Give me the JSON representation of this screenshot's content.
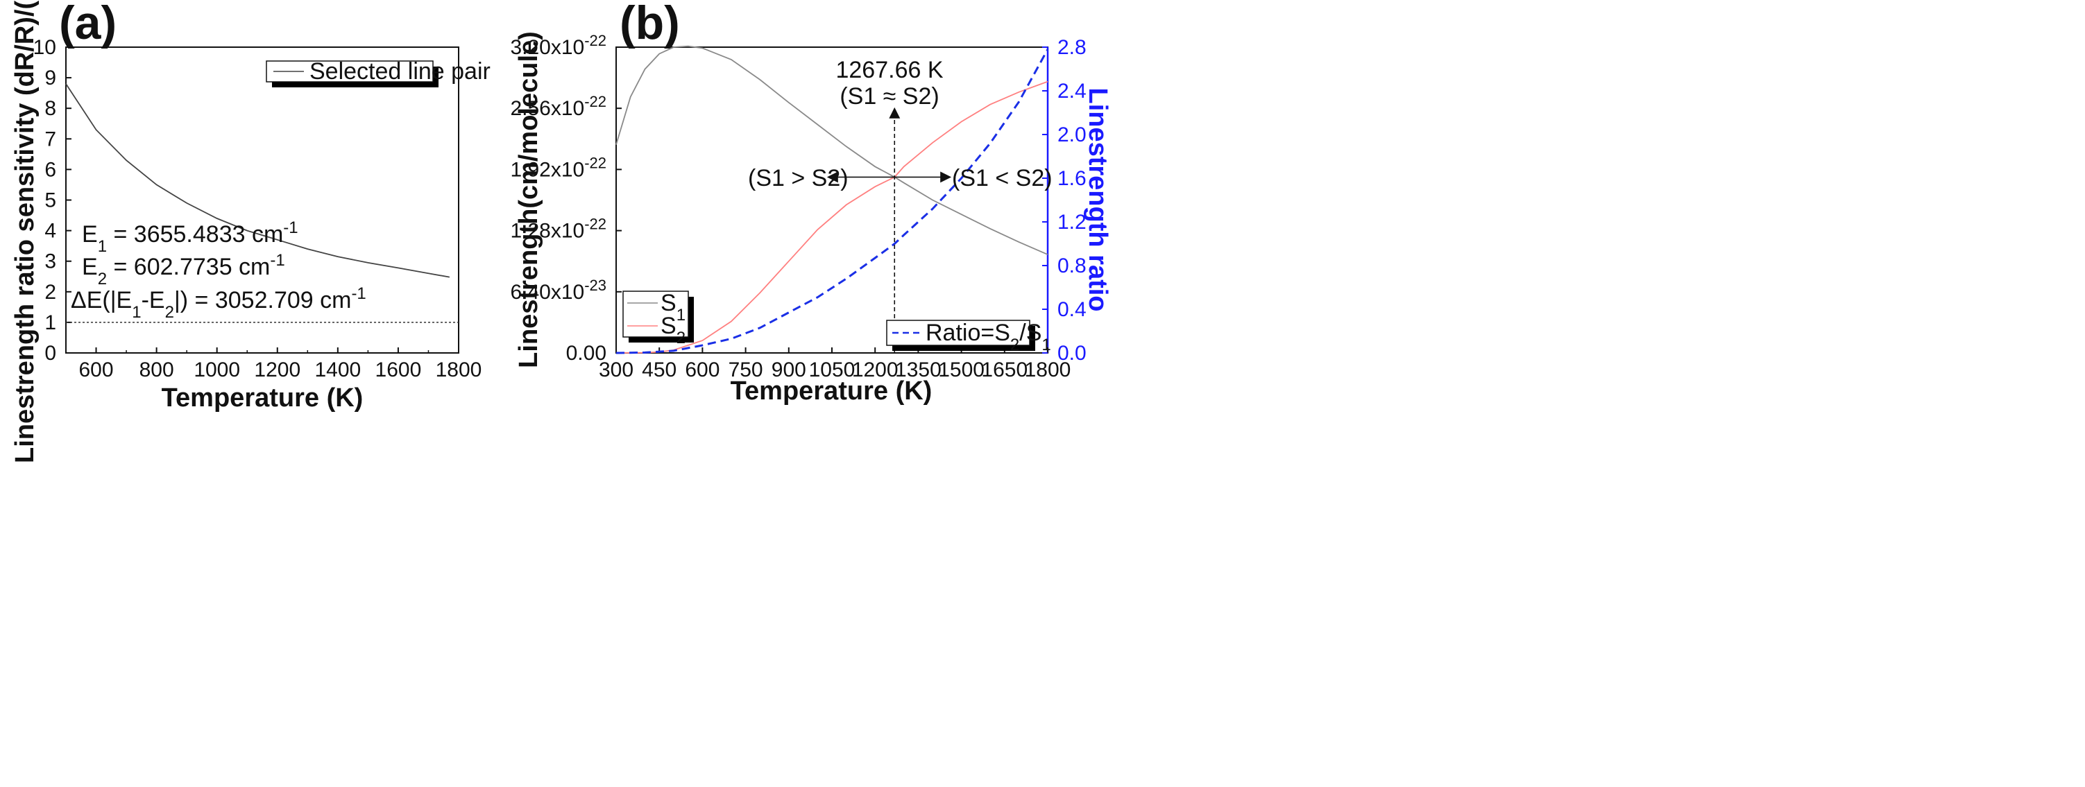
{
  "colors": {
    "black_line": "#444444",
    "s1_line": "#8a8a8a",
    "s2_line": "#ff8080",
    "ratio_line": "#1a2fe6",
    "right_axis": "#1a1aff"
  },
  "chart_data": [
    {
      "type": "line",
      "panel_label": "(a)",
      "xlabel": "Temperature (K)",
      "ylabel": "Linestrength ratio sensitivity (dR/R)/(dT/T)",
      "xlim": [
        500,
        1800
      ],
      "ylim": [
        0,
        10
      ],
      "xticks": [
        "600",
        "800",
        "1000",
        "1200",
        "1400",
        "1600",
        "1800"
      ],
      "yticks": [
        "0",
        "1",
        "2",
        "3",
        "4",
        "5",
        "6",
        "7",
        "8",
        "9",
        "10"
      ],
      "legend": "Selected line pair",
      "reference_line": {
        "y": 1,
        "style": "dotted"
      },
      "series": [
        {
          "name": "Selected line pair",
          "x": [
            500,
            600,
            700,
            800,
            900,
            1000,
            1100,
            1200,
            1300,
            1400,
            1500,
            1600,
            1700,
            1770
          ],
          "y": [
            8.8,
            7.3,
            6.3,
            5.5,
            4.9,
            4.4,
            4.0,
            3.7,
            3.4,
            3.15,
            2.95,
            2.78,
            2.6,
            2.48
          ]
        }
      ],
      "annotations": {
        "e1_pre": "E",
        "e1_sub": "1",
        "e1_text": " = 3655.4833 cm",
        "e1_sup": "-1",
        "e2_pre": "E",
        "e2_sub": "2",
        "e2_text": " = 602.7735 cm",
        "e2_sup": "-1",
        "de_a": "ΔE(|E",
        "de_sub1": "1",
        "de_b": "-E",
        "de_sub2": "2",
        "de_c": "|) = 3052.709 cm",
        "de_sup": "-1"
      }
    },
    {
      "type": "line",
      "panel_label": "(b)",
      "xlabel": "Temperature (K)",
      "ylabel": "Linestrength(cm/molecule)",
      "ylabel_right": "Linestrength ratio",
      "xlim": [
        300,
        1800
      ],
      "ylim": [
        0,
        3.2e-22
      ],
      "ylim_right": [
        0,
        2.8
      ],
      "xticks": [
        "300",
        "450",
        "600",
        "750",
        "900",
        "1050",
        "1200",
        "1350",
        "1500",
        "1650",
        "1800"
      ],
      "yticks_left": [
        {
          "base": "0.00",
          "exp": ""
        },
        {
          "base": "6.40x10",
          "exp": "-23"
        },
        {
          "base": "1.28x10",
          "exp": "-22"
        },
        {
          "base": "1.92x10",
          "exp": "-22"
        },
        {
          "base": "2.56x10",
          "exp": "-22"
        },
        {
          "base": "3.20x10",
          "exp": "-22"
        }
      ],
      "yticks_right": [
        "0.0",
        "0.4",
        "0.8",
        "1.2",
        "1.6",
        "2.0",
        "2.4",
        "2.8"
      ],
      "series": [
        {
          "name": "S1",
          "label_main": "S",
          "label_sub": "1",
          "axis": "left",
          "x": [
            300,
            350,
            400,
            450,
            500,
            550,
            600,
            700,
            800,
            900,
            1000,
            1100,
            1200,
            1267.66,
            1300,
            1400,
            1500,
            1600,
            1700,
            1800
          ],
          "y": [
            2.18e-22,
            2.68e-22,
            2.97e-22,
            3.13e-22,
            3.2e-22,
            3.21e-22,
            3.19e-22,
            3.07e-22,
            2.86e-22,
            2.62e-22,
            2.39e-22,
            2.16e-22,
            1.95e-22,
            1.84e-22,
            1.78e-22,
            1.6e-22,
            1.45e-22,
            1.3e-22,
            1.16e-22,
            1.03e-22
          ]
        },
        {
          "name": "S2",
          "label_main": "S",
          "label_sub": "2",
          "axis": "left",
          "x": [
            300,
            400,
            450,
            500,
            600,
            700,
            800,
            900,
            1000,
            1100,
            1200,
            1267.66,
            1300,
            1400,
            1500,
            1600,
            1700,
            1800
          ],
          "y": [
            0,
            2e-25,
            1e-24,
            3e-24,
            1.3e-23,
            3.3e-23,
            6.3e-23,
            9.6e-23,
            1.29e-22,
            1.55e-22,
            1.74e-22,
            1.84e-22,
            1.95e-22,
            2.2e-22,
            2.42e-22,
            2.6e-22,
            2.73e-22,
            2.84e-22
          ]
        },
        {
          "name": "Ratio=S2/S1",
          "label_a": "Ratio=S",
          "label_sub1": "2",
          "label_b": "/S",
          "label_sub2": "1",
          "axis": "right",
          "style": "dashed",
          "x": [
            300,
            400,
            500,
            600,
            700,
            800,
            900,
            1000,
            1100,
            1200,
            1267.66,
            1300,
            1400,
            1500,
            1600,
            1700,
            1800
          ],
          "y": [
            0,
            0.004,
            0.02,
            0.07,
            0.13,
            0.23,
            0.37,
            0.51,
            0.68,
            0.87,
            1.0,
            1.08,
            1.32,
            1.6,
            1.92,
            2.3,
            2.78
          ]
        }
      ],
      "annotations": {
        "crossing_temperature": 1267.66,
        "crossing_label": "1267.66 K",
        "crossing_relation": "(S1 ≈ S2)",
        "left_relation": "(S1 > S2)",
        "right_relation": "(S1 < S2)"
      }
    }
  ]
}
